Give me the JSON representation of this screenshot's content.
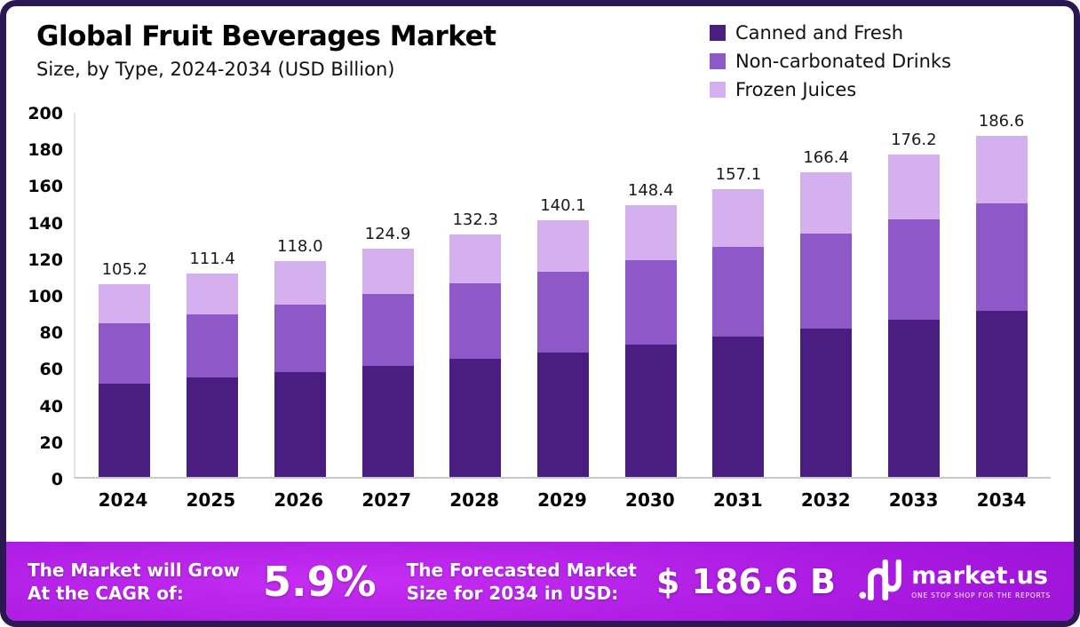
{
  "title": "Global Fruit Beverages Market",
  "subtitle": "Size, by Type, 2024-2034 (USD Billion)",
  "legend": [
    {
      "label": "Canned and Fresh",
      "color": "#4a1d80"
    },
    {
      "label": "Non-carbonated Drinks",
      "color": "#8f58c9"
    },
    {
      "label": "Frozen Juices",
      "color": "#d4b0ee"
    }
  ],
  "chart_data": {
    "type": "bar",
    "stacked": true,
    "title": "Global Fruit Beverages Market Size, by Type, 2024-2034 (USD Billion)",
    "categories": [
      "2024",
      "2025",
      "2026",
      "2027",
      "2028",
      "2029",
      "2030",
      "2031",
      "2032",
      "2033",
      "2034"
    ],
    "series": [
      {
        "name": "Canned and Fresh",
        "color": "#4a1d80",
        "values": [
          51.2,
          54.2,
          57.4,
          60.8,
          64.4,
          68.2,
          72.2,
          76.5,
          81.0,
          85.8,
          90.9
        ]
      },
      {
        "name": "Non-carbonated Drinks",
        "color": "#8f58c9",
        "values": [
          32.8,
          34.8,
          36.9,
          39.1,
          41.4,
          43.9,
          46.5,
          49.2,
          52.1,
          55.2,
          58.5
        ]
      },
      {
        "name": "Frozen Juices",
        "color": "#d4b0ee",
        "values": [
          21.2,
          22.4,
          23.7,
          25.0,
          26.5,
          28.0,
          29.7,
          31.4,
          33.3,
          35.2,
          37.2
        ]
      }
    ],
    "totals": [
      "105.2",
      "111.4",
      "118.0",
      "124.9",
      "132.3",
      "140.1",
      "148.4",
      "157.1",
      "166.4",
      "176.2",
      "186.6"
    ],
    "xlabel": "",
    "ylabel": "",
    "ylim": [
      0,
      200
    ],
    "yticks": [
      0,
      20,
      40,
      60,
      80,
      100,
      120,
      140,
      160,
      180,
      200
    ],
    "grid": false,
    "legend_position": "top-right"
  },
  "footer": {
    "cagr_label": [
      "The Market will Grow",
      "At the CAGR of:"
    ],
    "cagr_value": "5.9%",
    "forecast_label": [
      "The Forecasted Market",
      "Size for 2034 in USD:"
    ],
    "forecast_value": "$ 186.6 B",
    "brand": "market.us",
    "tagline": "ONE STOP SHOP FOR THE REPORTS"
  },
  "colors": {
    "card_border": "#2b1752",
    "footer_gradient": [
      "#c62df2",
      "#a316dd",
      "#8a0cc6"
    ]
  }
}
